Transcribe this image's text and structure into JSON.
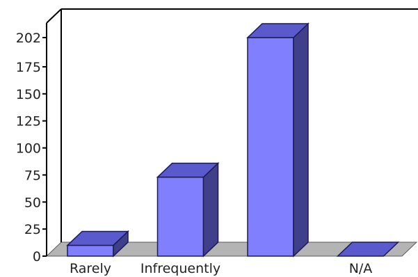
{
  "chart_data": {
    "type": "bar",
    "categories": [
      "Rarely",
      "Infrequently",
      "",
      "N/A"
    ],
    "values": [
      10,
      73,
      202,
      0
    ],
    "yticks": [
      0,
      25,
      50,
      75,
      100,
      125,
      150,
      175,
      202
    ],
    "ylim": [
      0,
      202
    ],
    "title": "",
    "xlabel": "",
    "ylabel": "",
    "grid": false,
    "legend": false
  },
  "colors": {
    "bar_front": "#8080ff",
    "bar_top": "#5a5acc",
    "bar_side": "#3f3f8a",
    "floor": "#b4b4b4",
    "floor_stroke": "#5a5a5a",
    "axis": "#000000"
  }
}
